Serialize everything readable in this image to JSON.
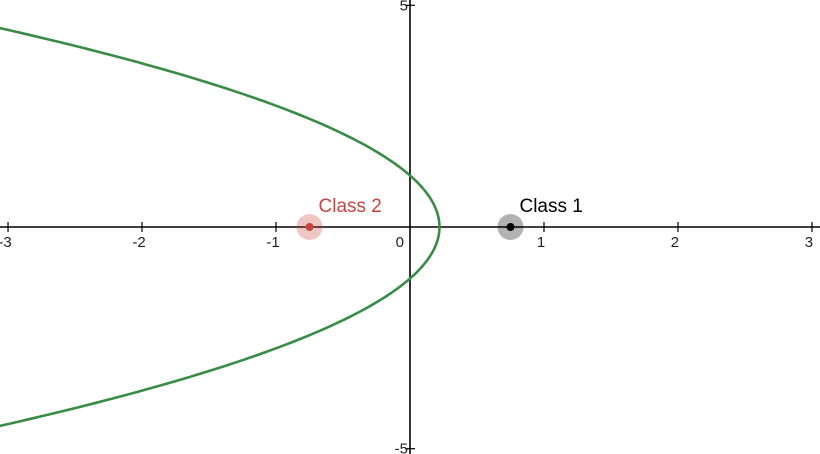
{
  "chart_data": {
    "type": "scatter",
    "title": "",
    "xlabel": "",
    "ylabel": "",
    "xlim": [
      -3.06,
      3.06
    ],
    "ylim": [
      -5.12,
      5.12
    ],
    "grid": false,
    "x_ticks": [
      -3,
      -2,
      -1,
      1,
      2,
      3
    ],
    "y_ticks": [
      5,
      -5
    ],
    "origin_label": "0",
    "points": [
      {
        "name": "Class 2",
        "x": -0.75,
        "y": 0,
        "color": "#c74440"
      },
      {
        "name": "Class 1",
        "x": 0.75,
        "y": 0,
        "color": "#000000"
      }
    ],
    "curve": {
      "color": "#388c46",
      "type": "parabola",
      "x_of_y": {
        "vertex_x": 0.22,
        "coef": -0.163
      }
    }
  }
}
